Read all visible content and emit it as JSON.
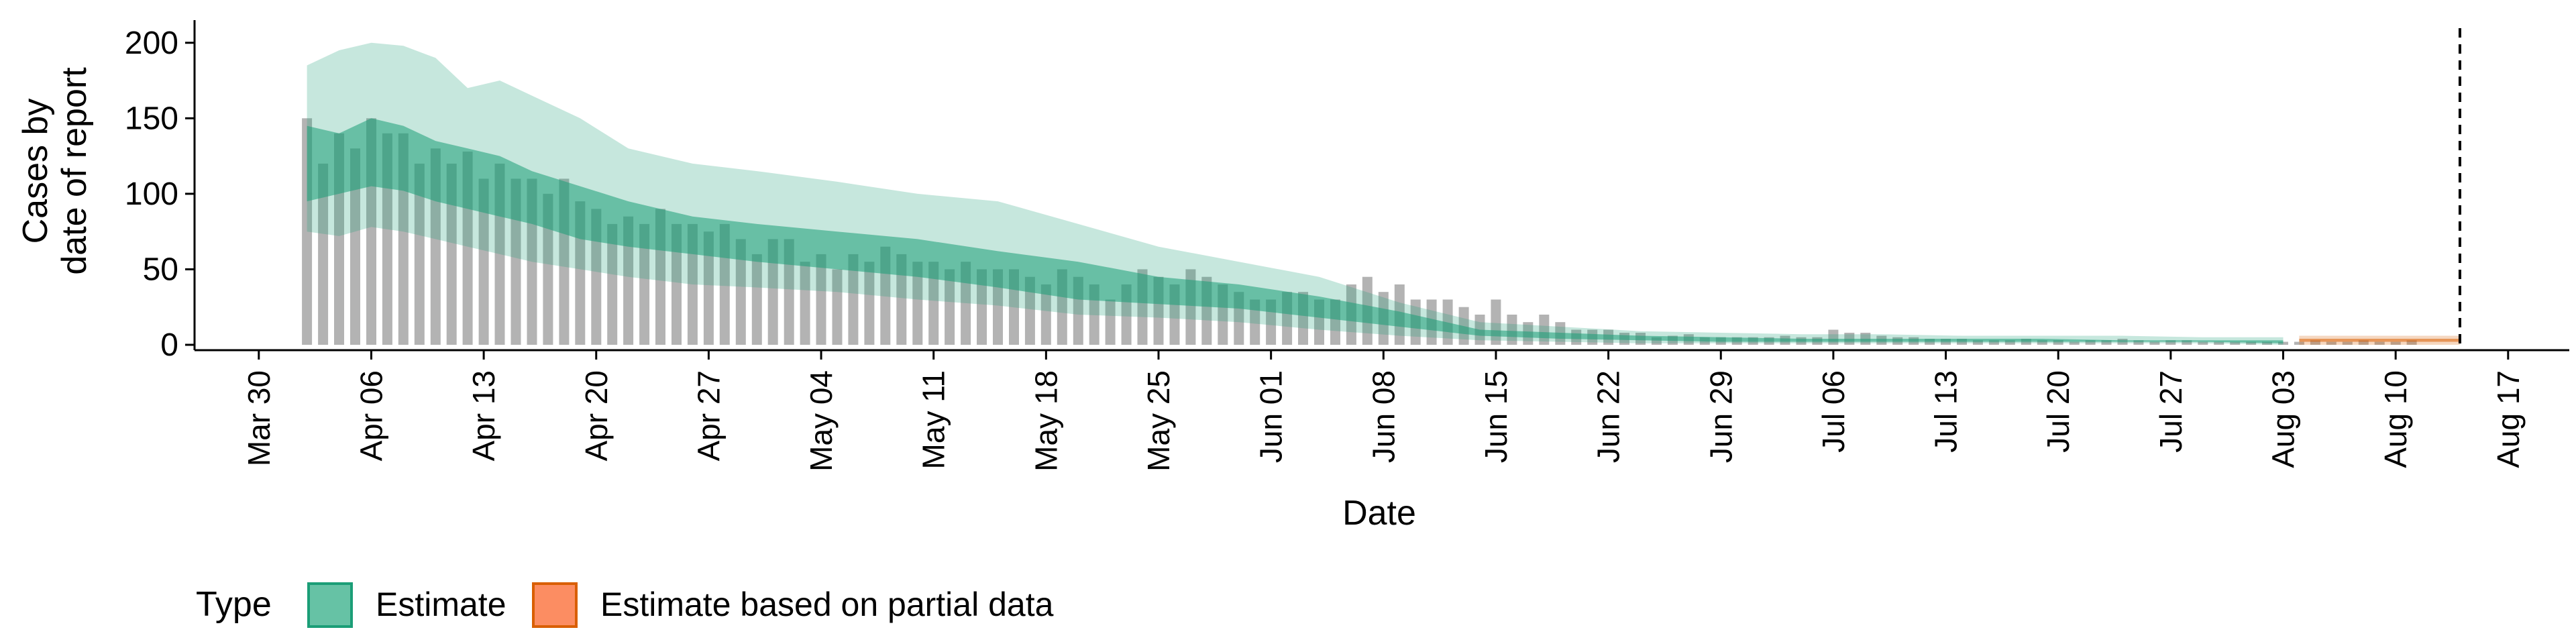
{
  "chart_data": {
    "type": "bar",
    "title": "",
    "xlabel": "Date",
    "ylabel_lines": [
      "Cases by",
      "date of report"
    ],
    "ylim": [
      0,
      215
    ],
    "y_ticks": [
      0,
      50,
      100,
      150,
      200
    ],
    "grid": false,
    "x_start": "2020-04-02",
    "x_tick_labels": [
      "Mar 30",
      "Apr 06",
      "Apr 13",
      "Apr 20",
      "Apr 27",
      "May 04",
      "May 11",
      "May 18",
      "May 25",
      "Jun 01",
      "Jun 08",
      "Jun 15",
      "Jun 22",
      "Jun 29",
      "Jul 06",
      "Jul 13",
      "Jul 20",
      "Jul 27",
      "Aug 03",
      "Aug 10",
      "Aug 17"
    ],
    "x_tick_dates": [
      "2020-03-30",
      "2020-04-06",
      "2020-04-13",
      "2020-04-20",
      "2020-04-27",
      "2020-05-04",
      "2020-05-11",
      "2020-05-18",
      "2020-05-25",
      "2020-06-01",
      "2020-06-08",
      "2020-06-15",
      "2020-06-22",
      "2020-06-29",
      "2020-07-06",
      "2020-07-13",
      "2020-07-20",
      "2020-07-27",
      "2020-08-03",
      "2020-08-10",
      "2020-08-17"
    ],
    "reported_cases": [
      150,
      120,
      140,
      130,
      150,
      140,
      140,
      120,
      130,
      120,
      128,
      110,
      120,
      110,
      110,
      100,
      110,
      95,
      90,
      80,
      85,
      80,
      90,
      80,
      80,
      75,
      80,
      70,
      60,
      70,
      70,
      55,
      60,
      50,
      60,
      55,
      65,
      60,
      55,
      55,
      50,
      55,
      50,
      50,
      50,
      45,
      40,
      50,
      45,
      40,
      30,
      40,
      50,
      45,
      40,
      50,
      45,
      40,
      35,
      30,
      30,
      35,
      35,
      30,
      30,
      40,
      45,
      35,
      40,
      30,
      30,
      30,
      25,
      20,
      30,
      20,
      15,
      20,
      15,
      10,
      10,
      10,
      8,
      8,
      5,
      6,
      7,
      5,
      5,
      5,
      5,
      5,
      6,
      5,
      5,
      10,
      8,
      8,
      6,
      5,
      5,
      4,
      4,
      4,
      3,
      3,
      3,
      4,
      3,
      3,
      2,
      3,
      3,
      4,
      3,
      2,
      3,
      3,
      2,
      2,
      2,
      2,
      2,
      2,
      2,
      3,
      2,
      2,
      3,
      2,
      2,
      3
    ],
    "estimate_last_date": "2020-08-03",
    "partial_start_date": "2020-08-04",
    "partial_end_date": "2020-08-14",
    "forecast_line_date": "2020-08-14",
    "estimate": {
      "x": [
        "2020-04-02",
        "2020-04-04",
        "2020-04-06",
        "2020-04-08",
        "2020-04-10",
        "2020-04-12",
        "2020-04-14",
        "2020-04-16",
        "2020-04-19",
        "2020-04-22",
        "2020-04-26",
        "2020-04-30",
        "2020-05-05",
        "2020-05-10",
        "2020-05-15",
        "2020-05-20",
        "2020-05-25",
        "2020-05-30",
        "2020-06-04",
        "2020-06-09",
        "2020-06-14",
        "2020-06-19",
        "2020-06-24",
        "2020-06-29",
        "2020-07-04",
        "2020-07-09",
        "2020-07-14",
        "2020-07-19",
        "2020-07-24",
        "2020-07-29",
        "2020-08-03"
      ],
      "outer_upper": [
        185,
        195,
        200,
        198,
        190,
        170,
        175,
        165,
        150,
        130,
        120,
        115,
        108,
        100,
        95,
        80,
        65,
        55,
        45,
        28,
        15,
        12,
        9,
        8,
        7,
        7,
        6,
        6,
        6,
        5,
        5
      ],
      "inner_upper": [
        145,
        140,
        150,
        145,
        135,
        130,
        125,
        115,
        105,
        95,
        85,
        80,
        75,
        70,
        62,
        55,
        45,
        40,
        32,
        22,
        10,
        8,
        6,
        5,
        4,
        4,
        4,
        4,
        3,
        3,
        3
      ],
      "inner_lower": [
        95,
        100,
        105,
        102,
        95,
        90,
        85,
        80,
        70,
        65,
        60,
        55,
        50,
        45,
        38,
        30,
        27,
        24,
        18,
        12,
        6,
        4,
        3,
        2,
        2,
        2,
        2,
        2,
        2,
        2,
        1
      ],
      "outer_lower": [
        75,
        72,
        78,
        75,
        70,
        65,
        60,
        55,
        50,
        45,
        40,
        38,
        35,
        30,
        26,
        20,
        18,
        15,
        10,
        6,
        3,
        2,
        1,
        1,
        1,
        1,
        1,
        1,
        1,
        1,
        0
      ]
    },
    "partial": {
      "x": [
        "2020-08-04",
        "2020-08-14"
      ],
      "outer_upper": [
        6,
        6
      ],
      "inner_upper": [
        4,
        4
      ],
      "inner_lower": [
        2,
        2
      ],
      "outer_lower": [
        0,
        0
      ]
    },
    "legend": {
      "title": "Type",
      "placement": "bottom",
      "items": [
        {
          "label": "Estimate",
          "fill": "#66C2A5",
          "stroke": "#1B9E77"
        },
        {
          "label": "Estimate based on partial data",
          "fill": "#FC8D62",
          "stroke": "#D95F02"
        }
      ]
    },
    "colors": {
      "bars": "#B3B3B3",
      "estimate": "#1B9E77",
      "partial": "#D95F02",
      "axis": "#000000"
    }
  }
}
